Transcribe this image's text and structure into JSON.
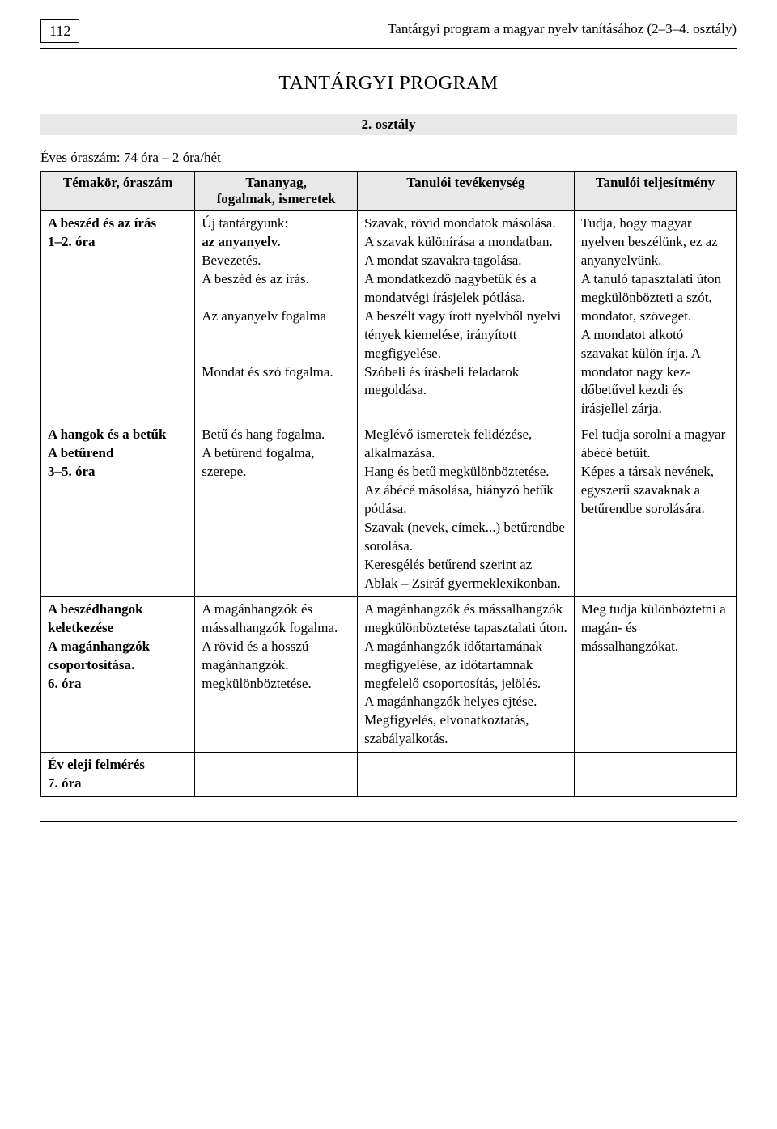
{
  "page_number": "112",
  "running_header": "Tantárgyi program a magyar nyelv tanításához (2–3–4. osztály)",
  "title": "TANTÁRGYI PROGRAM",
  "subtitle": "2. osztály",
  "hours_line": "Éves óraszám: 74 óra – 2 óra/hét",
  "columns": {
    "c1": "Témakör, óraszám",
    "c2": "Tananyag,\nfogalmak, ismeretek",
    "c3": "Tanulói tevékenység",
    "c4": "Tanulói teljesítmény"
  },
  "rows": [
    {
      "c1": "A beszéd és az írás\n1–2. óra",
      "c2": "Új tantárgyunk:\naz anyanyelv.\nBevezetés.\nA beszéd és az írás.\n\nAz anyanyelv fogal­ma\n\n\nMondat és szó fogal­ma.",
      "c3": "Szavak, rövid mondatok máso­lása. A szavak különírása a mondatban.\nA mondat szavakra tagolása.\nA mondatkezdő nagybetűk és a mondatvégi írásjelek pótlása.\nA beszélt vagy írott nyelvből nyelvi tények kiemelése, irá­nyított megfigyelése.\nSzóbeli és írásbeli feladatok megoldása.",
      "c4": "Tudja, hogy magyar nyelven beszélünk, ez az anyanyelvünk.\nA tanuló tapasztalati úton megkülönbözteti a szót, mondatot, szö­veget.\nA mondatot alkotó szavakat külön írja. A mondatot nagy kez­dőbetűvel kezdi és írásjellel zárja."
    },
    {
      "c1": "A hangok és a betűk\nA betűrend\n3–5. óra",
      "c2": "Betű és hang fogal­ma.\nA betűrend fogalma, szerepe.",
      "c3": "Meglévő ismeretek felidézése, alkalmazása.\nHang és betű megkülönbözte­tése.\nAz ábécé másolása, hiányzó betűk pótlása.\nSzavak (nevek, címek...) betű­rendbe sorolása.\nKeresgélés betűrend szerint az Ablak – Zsiráf gyermeklexi­konban.",
      "c4": "Fel tudja sorolni a magyar ábécé betűit.\nKépes a társak nevé­nek, egyszerű szavak­nak a betűrendbe so­rolására."
    },
    {
      "c1": "A beszédhangok keletkezése\nA magánhangzók csoportosítása.\n6. óra",
      "c2": "A magánhangzók és mássalhangzók fogal­ma.\nA rövid és a hosszú magánhangzók. megkülönböztetése.",
      "c3": "A magánhangzók és mással­hangzók megkülönböztetése tapasztalati úton.\nA magánhangzók időtartamá­nak megfigyelése, az időtar­tamnak megfelelő csoportosí­tás, jelölés.\nA magánhangzók helyes ejté­se.\nMegfigyelés, elvonatkoztatás, szabályalkotás.",
      "c4": "Meg tudja különböz­tetni a magán- és mássalhangzókat."
    },
    {
      "c1": "Év eleji felmérés\n7. óra",
      "c2": "",
      "c3": "",
      "c4": ""
    }
  ]
}
